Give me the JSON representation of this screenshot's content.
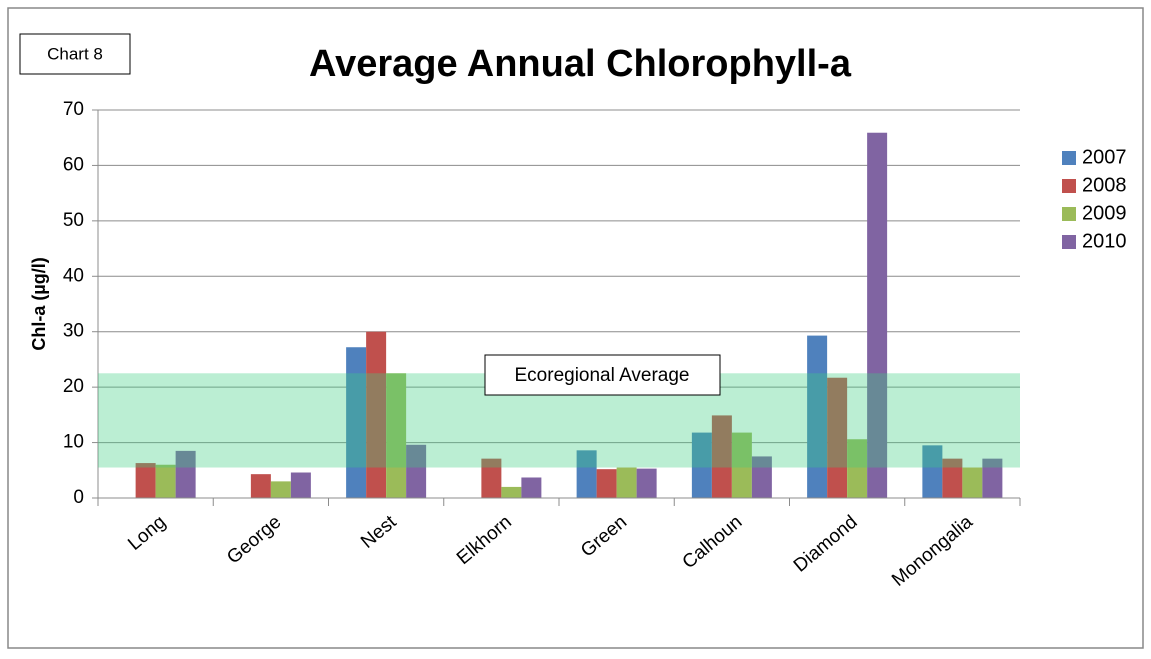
{
  "chart_data": {
    "type": "bar",
    "chart_label": "Chart 8",
    "title": "Average Annual Chlorophyll-a",
    "y_label": "Chl-a (µg/l)",
    "categories": [
      "Long",
      "George",
      "Nest",
      "Elkhorn",
      "Green",
      "Calhoun",
      "Diamond",
      "Monongalia"
    ],
    "series": [
      {
        "name": "2007",
        "color": "#4f81bd",
        "values": [
          null,
          null,
          27.2,
          null,
          8.6,
          11.8,
          29.3,
          9.5
        ]
      },
      {
        "name": "2008",
        "color": "#c0504d",
        "values": [
          6.3,
          4.3,
          30.0,
          7.1,
          5.2,
          14.9,
          21.7,
          7.1
        ]
      },
      {
        "name": "2009",
        "color": "#9bbb59",
        "values": [
          6.0,
          3.0,
          22.5,
          2.0,
          5.5,
          11.8,
          10.6,
          5.5
        ]
      },
      {
        "name": "2010",
        "color": "#8064a2",
        "values": [
          8.5,
          4.6,
          9.6,
          3.7,
          5.3,
          7.5,
          65.9,
          7.1
        ]
      }
    ],
    "band": [
      5.5,
      22.5
    ],
    "band_label": "Ecoregional Average",
    "band_color": "#3ccf80",
    "ylim": [
      0,
      70
    ],
    "yticks": [
      0,
      10,
      20,
      30,
      40,
      50,
      60,
      70
    ],
    "grid": true,
    "legend": "right"
  }
}
